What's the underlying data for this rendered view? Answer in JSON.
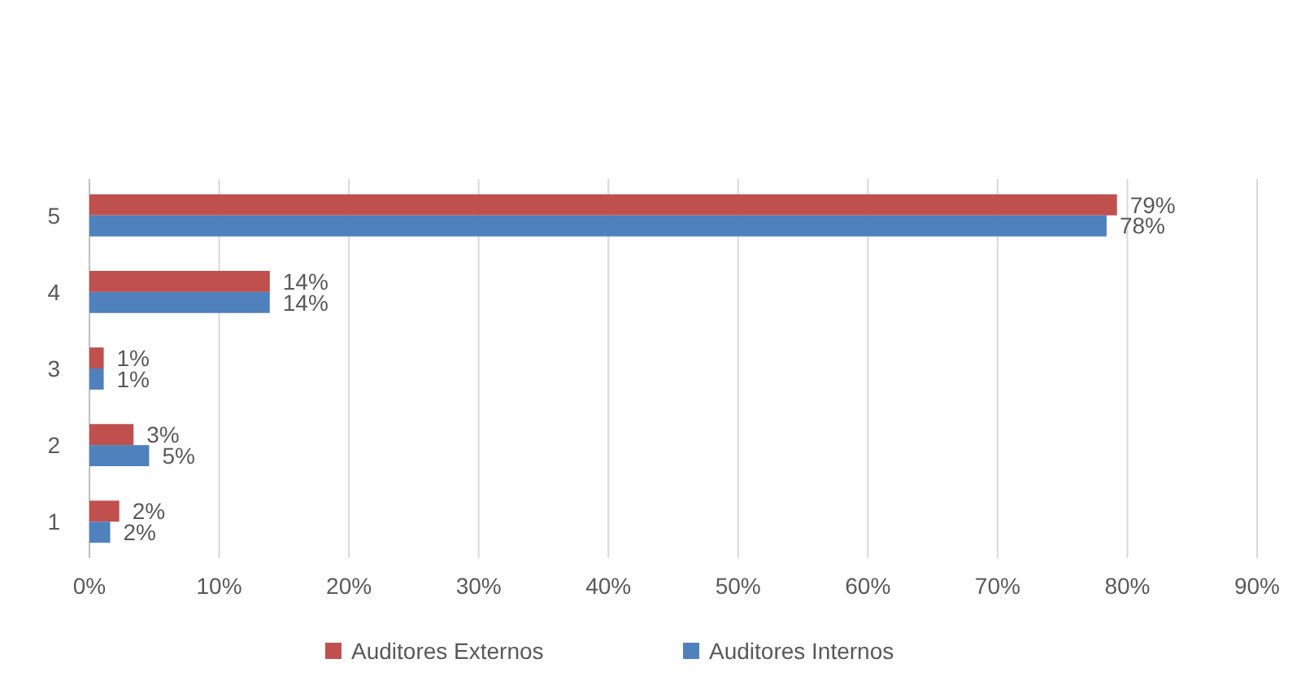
{
  "chart_data": {
    "type": "bar",
    "orientation": "horizontal",
    "categories": [
      "5",
      "4",
      "3",
      "2",
      "1"
    ],
    "series": [
      {
        "name": "Auditores Externos",
        "color": "#c0504d",
        "values": [
          79.2,
          13.9,
          1.1,
          3.4,
          2.3
        ],
        "value_labels": [
          "79%",
          "14%",
          "1%",
          "3%",
          "2%"
        ]
      },
      {
        "name": "Auditores Internos",
        "color": "#4f81bd",
        "values": [
          78.4,
          13.9,
          1.1,
          4.6,
          1.6
        ],
        "value_labels": [
          "78%",
          "14%",
          "1%",
          "5%",
          "2%"
        ]
      }
    ],
    "xlim": [
      0,
      90
    ],
    "xticks": [
      {
        "value": 0,
        "label": "0%"
      },
      {
        "value": 10,
        "label": "10%"
      },
      {
        "value": 20,
        "label": "20%"
      },
      {
        "value": 30,
        "label": "30%"
      },
      {
        "value": 40,
        "label": "40%"
      },
      {
        "value": 50,
        "label": "50%"
      },
      {
        "value": 60,
        "label": "60%"
      },
      {
        "value": 70,
        "label": "70%"
      },
      {
        "value": 80,
        "label": "80%"
      },
      {
        "value": 90,
        "label": "90%"
      }
    ],
    "grid": "x",
    "legend": "bottom"
  }
}
